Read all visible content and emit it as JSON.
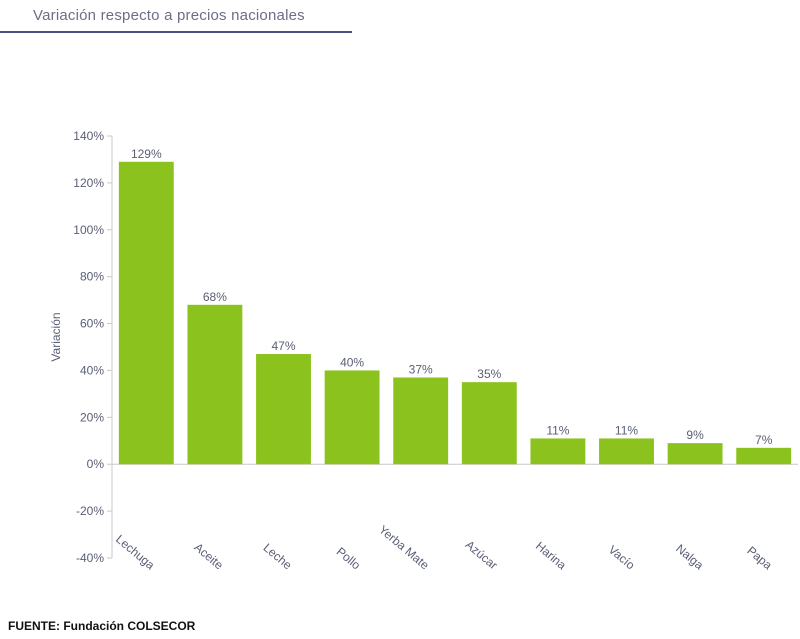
{
  "header": {
    "title": "Variación respecto a precios nacionales"
  },
  "source": {
    "text": "FUENTE: Fundación COLSECOR"
  },
  "colors": {
    "bar": "#8cc21e",
    "text": "#5a5e74",
    "axis": "#c8c8c8"
  },
  "chart_data": {
    "type": "bar",
    "title": "Variación respecto a precios nacionales",
    "xlabel": "",
    "ylabel": "Variación",
    "ylim": [
      -40,
      140
    ],
    "yticks": [
      -40,
      -20,
      0,
      20,
      40,
      60,
      80,
      100,
      120,
      140
    ],
    "ytick_labels": [
      "-40%",
      "-20%",
      "0%",
      "20%",
      "40%",
      "60%",
      "80%",
      "100%",
      "120%",
      "140%"
    ],
    "categories": [
      "Lechuga",
      "Aceite",
      "Leche",
      "Pollo",
      "Yerba Mate",
      "Azúcar",
      "Harina",
      "Vacío",
      "Nalga",
      "Papa"
    ],
    "values": [
      129,
      68,
      47,
      40,
      37,
      35,
      11,
      11,
      9,
      7
    ],
    "data_labels": [
      "129%",
      "68%",
      "47%",
      "40%",
      "37%",
      "35%",
      "11%",
      "11%",
      "9%",
      "7%"
    ],
    "grid": false,
    "legend": "none"
  }
}
